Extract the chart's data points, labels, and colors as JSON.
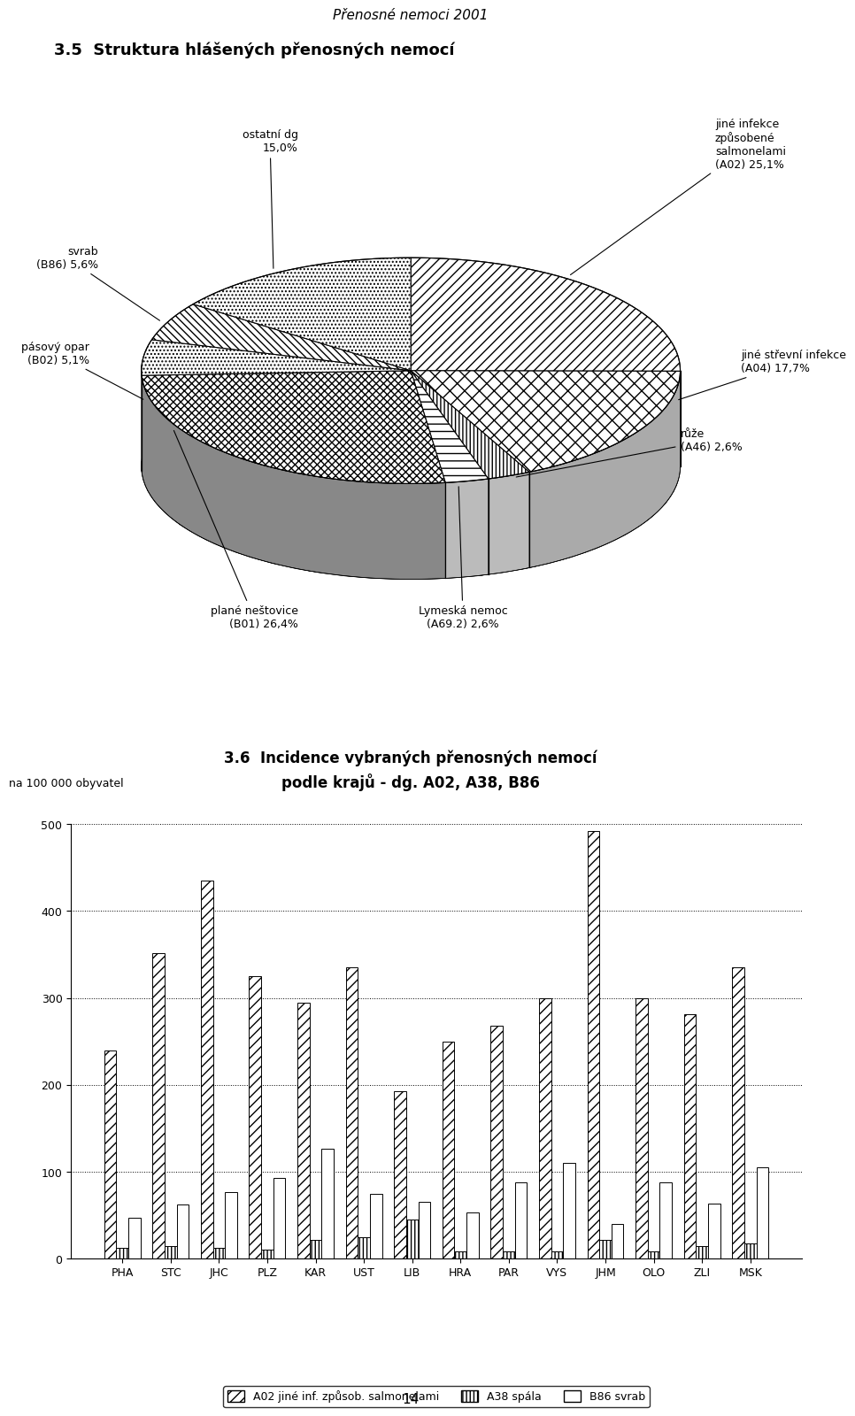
{
  "page_title": "Přenosné nemoci 2001",
  "pie_title": "3.5  Struktura hlášených přenosných nemocí",
  "pie_slices": [
    {
      "label": "jiné infekce\nzpůsobené\nsalmonelami\n(A02) 25,1%",
      "value": 25.1,
      "hatch": "///",
      "start_angle": 90.0
    },
    {
      "label": "jiné střevní infekce\n(A04) 17,7%",
      "value": 17.7,
      "hatch": "xxx",
      "start_angle": 0.0
    },
    {
      "label": "růže\n(A46) 2,6%",
      "value": 2.6,
      "hatch": "|||",
      "start_angle": 0.0
    },
    {
      "label": "Lymeská nemoc\n(A69.2) 2,6%",
      "value": 2.6,
      "hatch": "---",
      "start_angle": 0.0
    },
    {
      "label": "plané neštovice\n(B01) 26,4%",
      "value": 26.4,
      "hatch": "\\\\\\",
      "start_angle": 0.0
    },
    {
      "label": "pásový opar\n(B02) 5,1%",
      "value": 5.1,
      "hatch": "....",
      "start_angle": 0.0
    },
    {
      "label": "svrab\n(B86) 5,6%",
      "value": 5.6,
      "hatch": "\\\\\\",
      "start_angle": 0.0
    },
    {
      "label": "ostatní dg\n15,0%",
      "value": 15.0,
      "hatch": "....",
      "start_angle": 0.0
    }
  ],
  "bar_title_line1": "3.6  Incidence vybraných přenosných nemocí",
  "bar_title_line2": "podle krajů - dg. A02, A38, B86",
  "bar_ylabel": "na 100 000 obyvatel",
  "bar_categories": [
    "PHA",
    "STC",
    "JHC",
    "PLZ",
    "KAR",
    "UST",
    "LIB",
    "HRA",
    "PAR",
    "VYS",
    "JHM",
    "OLO",
    "ZLI",
    "MSK"
  ],
  "bar_A02": [
    240,
    352,
    435,
    325,
    295,
    335,
    193,
    250,
    268,
    300,
    492,
    300,
    281,
    335
  ],
  "bar_A38": [
    12,
    15,
    13,
    10,
    22,
    25,
    45,
    8,
    8,
    8,
    22,
    8,
    15,
    18
  ],
  "bar_B86": [
    47,
    62,
    77,
    93,
    127,
    75,
    65,
    53,
    88,
    110,
    40,
    88,
    63,
    105
  ],
  "bar_ylim": [
    0,
    500
  ],
  "bar_yticks": [
    0,
    100,
    200,
    300,
    400,
    500
  ],
  "legend_labels": [
    "A02 jiné inf. způsob. salmonelami",
    "A38 spála",
    "B86 svrab"
  ],
  "page_number": "14",
  "background_color": "#ffffff"
}
